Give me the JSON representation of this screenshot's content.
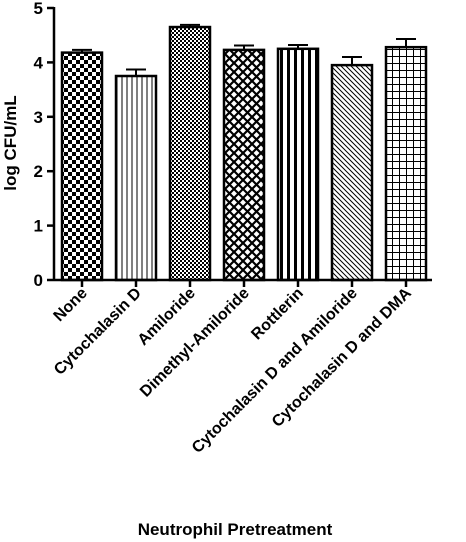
{
  "chart_data": {
    "type": "bar",
    "title": "",
    "xlabel": "Neutrophil Pretreatment",
    "ylabel": "log CFU/mL",
    "ylim": [
      0,
      5
    ],
    "yticks": [
      "0",
      "1",
      "2",
      "3",
      "4",
      "5"
    ],
    "grid": false,
    "categories": [
      "None",
      "Cytochalasin D",
      "Amiloride",
      "Dimethyl-Amiloride",
      "Rottlerin",
      "Cytochalasin D and Amiloride",
      "Cytochalasin D and DMA"
    ],
    "values": [
      4.18,
      3.75,
      4.65,
      4.23,
      4.25,
      3.95,
      4.28
    ],
    "errors": [
      0.05,
      0.12,
      0.04,
      0.08,
      0.07,
      0.15,
      0.15
    ],
    "fill_patterns": [
      "checker-large",
      "vertical-lines",
      "checker-fine",
      "diagonal-crosshatch",
      "vertical-stripes",
      "diagonal-lines",
      "grid"
    ],
    "colors": {
      "bar_stroke": "#000000",
      "bar_fill": "#ffffff",
      "axis": "#000000"
    }
  }
}
